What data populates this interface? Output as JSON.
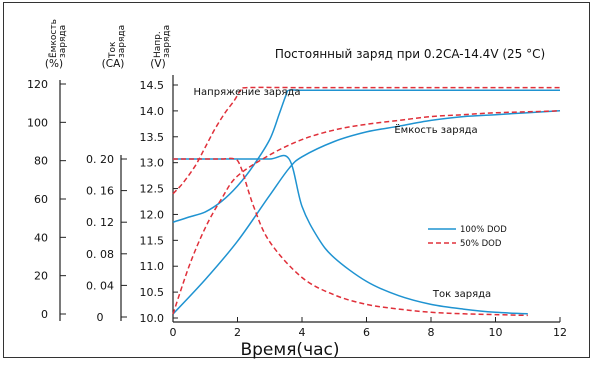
{
  "chart_data": {
    "type": "line",
    "title": "Постоянный заряд при 0.2CA-14.4V (25 °C)",
    "xlabel": "Время(час)",
    "xlim": [
      0,
      12
    ],
    "x_ticks": [
      "0",
      "2",
      "4",
      "6",
      "8",
      "10",
      "12"
    ],
    "axes": [
      {
        "header": [
          "Ёмкость",
          "заряда"
        ],
        "unit": "(%)",
        "ticks": [
          "120",
          "100",
          "80",
          "60",
          "40",
          "20",
          "0"
        ],
        "range": [
          0,
          120
        ]
      },
      {
        "header": [
          "Ток",
          "заряда"
        ],
        "unit": "(CA)",
        "ticks": [
          "0. 20",
          "0. 16",
          "0. 12",
          "0. 08",
          "0. 04",
          "0"
        ],
        "range": [
          0,
          0.2
        ]
      },
      {
        "header": [
          "Напр.",
          "заряда"
        ],
        "unit": "(V)",
        "ticks": [
          "14.5",
          "14.0",
          "13.5",
          "13.0",
          "12.5",
          "12.0",
          "11.5",
          "11.0",
          "10.5",
          "10.0"
        ],
        "range": [
          10.0,
          14.5
        ]
      }
    ],
    "annotations": {
      "voltage": "Напряжение заряда",
      "capacity": "Ёмкость заряда",
      "current": "Ток заряда"
    },
    "legend": {
      "position": "inside-right",
      "entries": [
        "100% DOD",
        "50% DOD"
      ]
    },
    "series": [
      {
        "name": "100% DOD",
        "quantity": "voltage",
        "unit": "V",
        "style": "solid",
        "x": [
          0,
          0.5,
          1,
          1.5,
          2,
          2.5,
          3,
          3.3,
          3.5,
          3.6,
          4,
          6,
          8,
          10,
          12
        ],
        "y": [
          11.85,
          11.95,
          12.05,
          12.25,
          12.55,
          12.95,
          13.45,
          13.95,
          14.3,
          14.4,
          14.4,
          14.4,
          14.4,
          14.4,
          14.4
        ]
      },
      {
        "name": "100% DOD",
        "quantity": "current",
        "unit": "CA",
        "style": "solid",
        "x": [
          0,
          1,
          2,
          3,
          3.6,
          4,
          4.5,
          5,
          6,
          7,
          8,
          9,
          10,
          11
        ],
        "y": [
          0.2,
          0.2,
          0.2,
          0.2,
          0.2,
          0.14,
          0.1,
          0.075,
          0.045,
          0.027,
          0.016,
          0.01,
          0.006,
          0.004
        ]
      },
      {
        "name": "100% DOD",
        "quantity": "capacity",
        "unit": "%",
        "style": "solid",
        "x": [
          0,
          1,
          2,
          3,
          3.6,
          4,
          5,
          6,
          7,
          8,
          9,
          10,
          11,
          12
        ],
        "y": [
          0,
          18,
          38,
          62,
          76,
          82,
          90,
          95,
          98,
          101,
          103,
          104,
          105,
          106
        ]
      },
      {
        "name": "50% DOD",
        "quantity": "voltage",
        "unit": "V",
        "style": "dashed",
        "x": [
          0,
          0.3,
          0.7,
          1,
          1.3,
          1.6,
          1.9,
          2.1,
          2.3,
          4,
          6,
          8,
          10,
          12
        ],
        "y": [
          12.4,
          12.6,
          12.95,
          13.3,
          13.65,
          13.95,
          14.2,
          14.4,
          14.45,
          14.45,
          14.45,
          14.45,
          14.45,
          14.45
        ]
      },
      {
        "name": "50% DOD",
        "quantity": "current",
        "unit": "CA",
        "style": "dashed",
        "x": [
          0,
          1,
          1.5,
          1.9,
          2.1,
          2.5,
          3,
          4,
          5,
          6,
          7,
          8,
          9,
          10,
          11
        ],
        "y": [
          0.2,
          0.2,
          0.2,
          0.2,
          0.19,
          0.14,
          0.095,
          0.05,
          0.028,
          0.016,
          0.01,
          0.006,
          0.004,
          0.003,
          0.002
        ]
      },
      {
        "name": "50% DOD",
        "quantity": "capacity",
        "unit": "%",
        "style": "dashed",
        "x": [
          0,
          0.5,
          1,
          1.5,
          2,
          3,
          4,
          5,
          6,
          7,
          8,
          9,
          10,
          11,
          12
        ],
        "y": [
          0,
          25,
          45,
          60,
          72,
          83,
          91,
          96,
          99,
          101,
          103,
          104,
          105,
          105.5,
          106
        ]
      }
    ],
    "colors": {
      "100% DOD": "#1f93d1",
      "50% DOD": "#e0303a"
    },
    "grid": false
  }
}
